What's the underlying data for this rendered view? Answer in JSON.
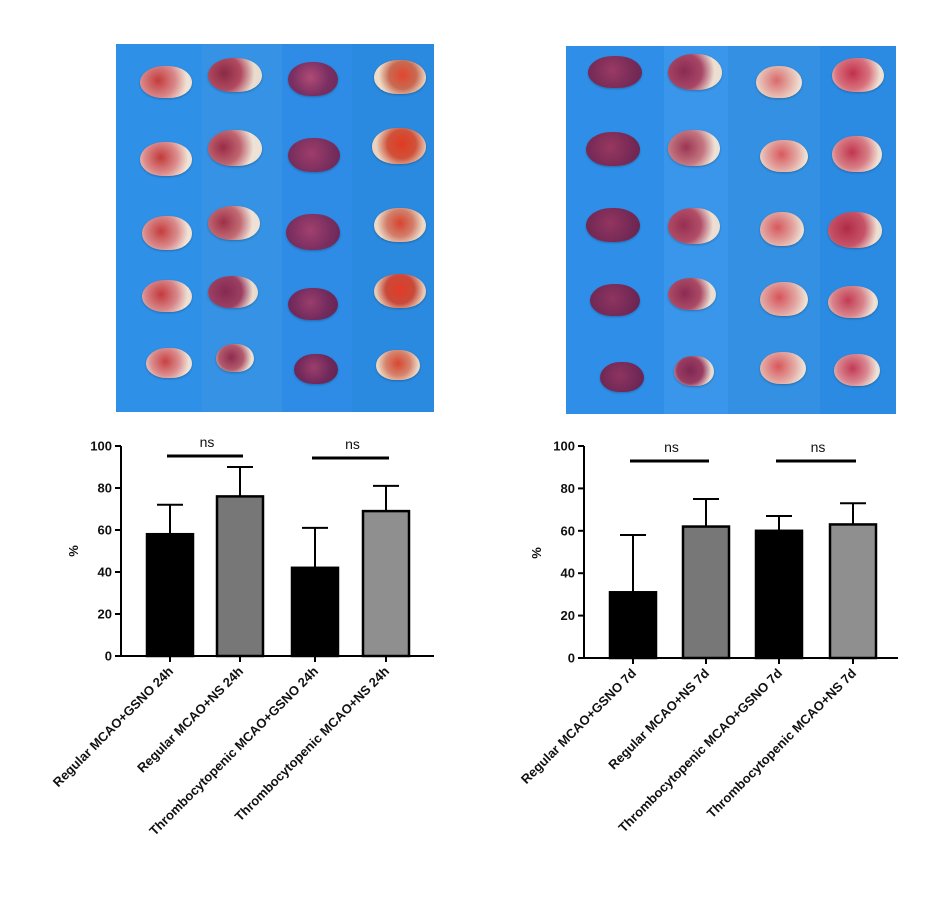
{
  "figure": {
    "left_photo": {
      "description_icon": "ttc-stained-brain-slices-24h-image"
    },
    "right_photo": {
      "description_icon": "ttc-stained-brain-slices-7d-image"
    }
  },
  "chart_data": [
    {
      "type": "bar",
      "title": "",
      "xlabel": "",
      "ylabel": "%",
      "ylim": [
        0,
        100
      ],
      "yticks": [
        "0",
        "20",
        "40",
        "60",
        "80",
        "100"
      ],
      "categories": [
        "Regular MCAO+GSNO 24h",
        "Regular MCAO+NS 24h",
        "Thrombocytopenic MCAO+GSNO 24h",
        "Thrombocytopenic MCAO+NS 24h"
      ],
      "values": [
        58,
        76,
        42,
        69
      ],
      "errors": [
        14,
        14,
        19,
        12
      ],
      "bar_colors": [
        "#000000",
        "#777777",
        "#000000",
        "#8f8f8f"
      ],
      "significance": [
        {
          "between": [
            0,
            1
          ],
          "label": "ns"
        },
        {
          "between": [
            2,
            3
          ],
          "label": "ns"
        }
      ]
    },
    {
      "type": "bar",
      "title": "",
      "xlabel": "",
      "ylabel": "%",
      "ylim": [
        0,
        100
      ],
      "yticks": [
        "0",
        "20",
        "40",
        "60",
        "80",
        "100"
      ],
      "categories": [
        "Regular MCAO+GSNO 7d",
        "Regular MCAO+NS 7d",
        "Thrombocytopenic MCAO+GSNO 7d",
        "Thrombocytopenic MCAO+NS 7d"
      ],
      "values": [
        31,
        62,
        60,
        63
      ],
      "errors": [
        27,
        13,
        7,
        10
      ],
      "bar_colors": [
        "#000000",
        "#777777",
        "#000000",
        "#8f8f8f"
      ],
      "significance": [
        {
          "between": [
            0,
            1
          ],
          "label": "ns"
        },
        {
          "between": [
            2,
            3
          ],
          "label": "ns"
        }
      ]
    }
  ]
}
